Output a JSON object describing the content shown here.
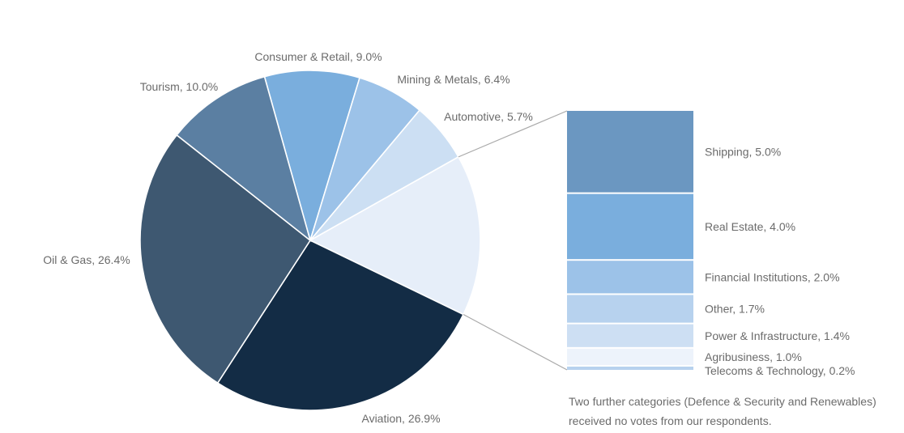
{
  "chart_data": {
    "type": "pie",
    "title": "",
    "slices": [
      {
        "label": "Consumer & Retail, 9.0%",
        "value": 9.0,
        "color": "#7aaedd"
      },
      {
        "label": "Mining & Metals, 6.4%",
        "value": 6.4,
        "color": "#9cc2e8"
      },
      {
        "label": "Automotive, 5.7%",
        "value": 5.7,
        "color": "#ccdff3"
      },
      {
        "label": "",
        "value": 15.3,
        "color": "#e6eef9"
      },
      {
        "label": "Aviation, 26.9%",
        "value": 26.9,
        "color": "#132c45"
      },
      {
        "label": "Oil & Gas, 26.4%",
        "value": 26.4,
        "color": "#3e5871"
      },
      {
        "label": "Tourism, 10.0%",
        "value": 10.0,
        "color": "#5b7fa2"
      }
    ],
    "breakdown": [
      {
        "label": "Shipping, 5.0%",
        "value": 5.0,
        "color": "#6b97c1"
      },
      {
        "label": "Real Estate, 4.0%",
        "value": 4.0,
        "color": "#7aaedd"
      },
      {
        "label": "Financial Institutions, 2.0%",
        "value": 2.0,
        "color": "#9cc2e8"
      },
      {
        "label": "Other, 1.7%",
        "value": 1.7,
        "color": "#b7d2ee"
      },
      {
        "label": "Power & Infrastructure, 1.4%",
        "value": 1.4,
        "color": "#cddff3"
      },
      {
        "label": "Agribusiness, 1.0%",
        "value": 1.0,
        "color": "#edf3fb"
      },
      {
        "label": "Telecoms & Technology, 0.2%",
        "value": 0.2,
        "color": "#b7d2ee"
      }
    ]
  },
  "note": {
    "text": "Two further categories (Defence & Security and Renewables) received no votes from our respondents."
  }
}
